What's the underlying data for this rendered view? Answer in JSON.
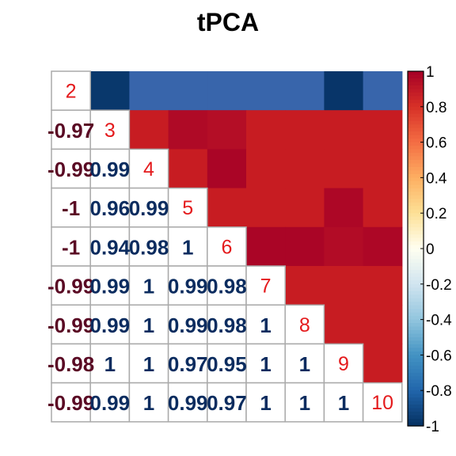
{
  "chart_data": {
    "type": "heatmap",
    "title": "tPCA",
    "variables": [
      "2",
      "3",
      "4",
      "5",
      "6",
      "7",
      "8",
      "9",
      "10"
    ],
    "lower_labels": [
      [],
      [
        "-0.97"
      ],
      [
        "-0.99",
        "0.99"
      ],
      [
        "-1",
        "0.96",
        "0.99"
      ],
      [
        "-1",
        "0.94",
        "0.98",
        "1"
      ],
      [
        "-0.99",
        "0.99",
        "1",
        "0.99",
        "0.98"
      ],
      [
        "-0.99",
        "0.99",
        "1",
        "0.99",
        "0.98",
        "1"
      ],
      [
        "-0.98",
        "1",
        "1",
        "0.97",
        "0.95",
        "1",
        "1"
      ],
      [
        "-0.99",
        "0.99",
        "1",
        "0.99",
        "0.97",
        "1",
        "1",
        "1"
      ]
    ],
    "correlation_matrix": [
      [
        1,
        -0.97,
        -0.99,
        -1,
        -1,
        -0.99,
        -0.99,
        -0.98,
        -0.99
      ],
      [
        -0.97,
        1,
        0.99,
        0.96,
        0.94,
        0.99,
        0.99,
        1,
        0.99
      ],
      [
        -0.99,
        0.99,
        1,
        0.99,
        0.98,
        1,
        1,
        1,
        1
      ],
      [
        -1,
        0.96,
        0.99,
        1,
        1,
        0.99,
        0.99,
        0.97,
        0.99
      ],
      [
        -1,
        0.94,
        0.98,
        1,
        1,
        0.98,
        0.98,
        0.95,
        0.97
      ],
      [
        -0.99,
        0.99,
        1,
        0.99,
        0.98,
        1,
        1,
        1,
        1
      ],
      [
        -0.99,
        0.99,
        1,
        0.99,
        0.98,
        1,
        1,
        1,
        1
      ],
      [
        -0.98,
        1,
        1,
        0.97,
        0.95,
        1,
        1,
        1,
        1
      ],
      [
        -0.99,
        0.99,
        1,
        0.99,
        0.97,
        1,
        1,
        1,
        1
      ]
    ],
    "colorbar": {
      "range": [
        -1,
        1
      ],
      "tick_labels": [
        "1",
        "0.8",
        "0.6",
        "0.4",
        "0.2",
        "0",
        "-0.2",
        "-0.4",
        "-0.6",
        "-0.8",
        "-1"
      ]
    },
    "colors": {
      "positive_strong": "#C71C22",
      "negative_strong": "#3865AB",
      "diagonal_label": "#E41A1C",
      "positive_text": "#0B2C5F",
      "negative_text": "#5A0A24",
      "grid": "#AAAAAA"
    }
  }
}
